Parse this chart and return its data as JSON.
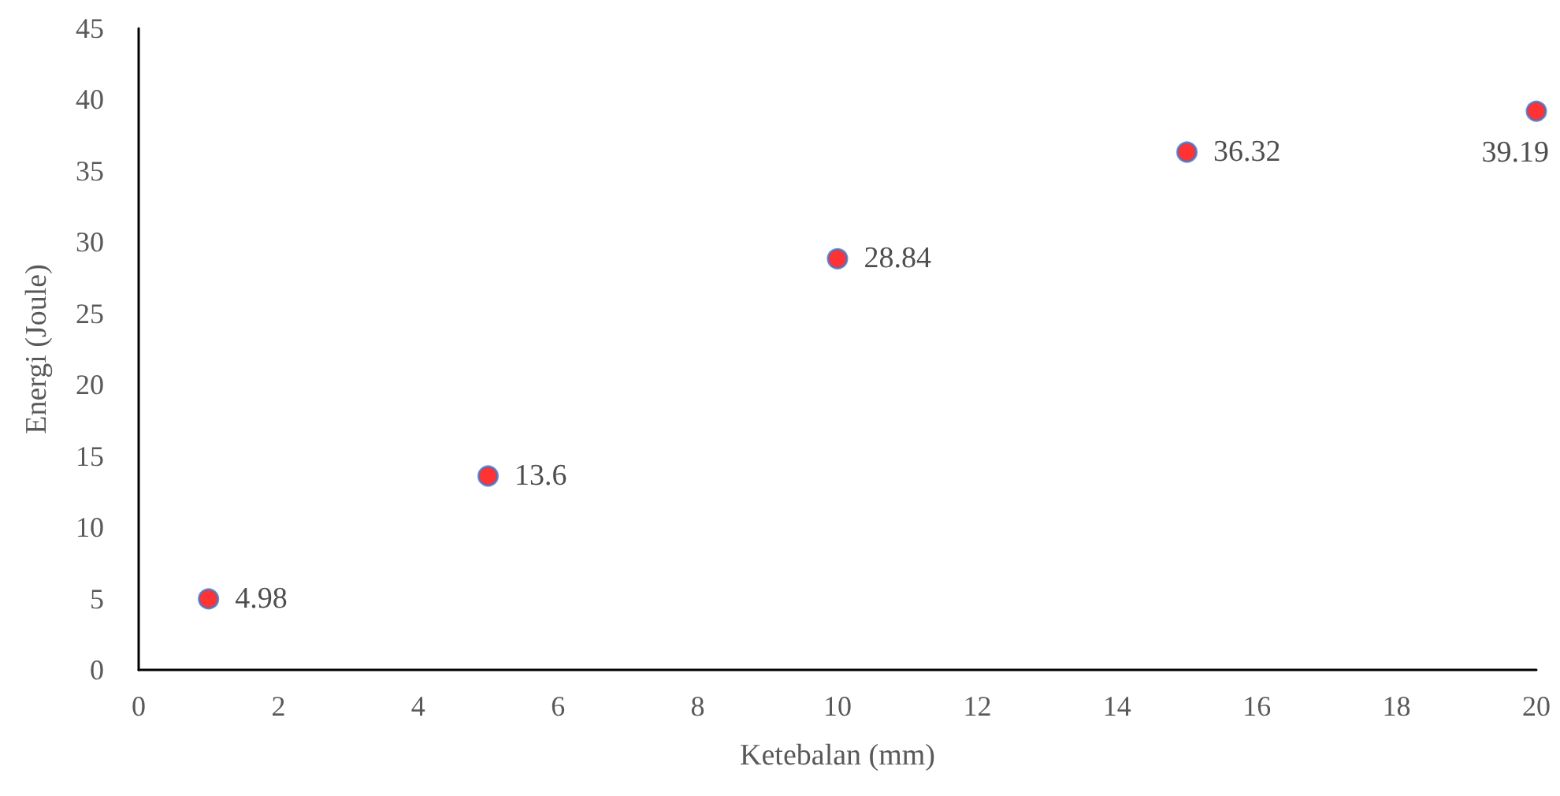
{
  "chart_data": {
    "type": "scatter",
    "xlabel": "Ketebalan (mm)",
    "ylabel": "Energi (Joule)",
    "x": [
      1,
      5,
      10,
      15,
      20
    ],
    "series": [
      {
        "color": "#ff0000",
        "values": [
          4.98,
          13.6,
          28.84,
          36.32,
          39.19
        ]
      }
    ],
    "xlim": [
      0,
      20
    ],
    "xticks": [
      0,
      2,
      4,
      6,
      8,
      10,
      12,
      14,
      16,
      18,
      20
    ],
    "ylim": [
      0,
      45
    ],
    "yticks": [
      0,
      5,
      10,
      15,
      20,
      25,
      30,
      35,
      40,
      45
    ],
    "grid": false,
    "marker": "circle",
    "data_labels": true
  }
}
